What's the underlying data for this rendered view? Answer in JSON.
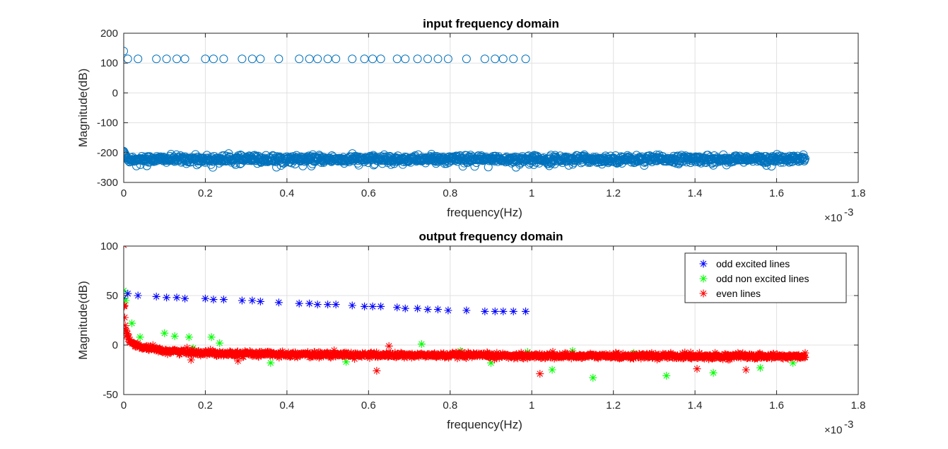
{
  "chart_data": [
    {
      "type": "scatter",
      "title": "input frequency domain",
      "xlabel": "frequency(Hz)",
      "ylabel": "Magnitude(dB)",
      "x_exponent_label": "×10",
      "x_exponent": "-3",
      "xlim": [
        0,
        1.8
      ],
      "ylim": [
        -300,
        200
      ],
      "xticks": [
        "0",
        "0.2",
        "0.4",
        "0.6",
        "0.8",
        "1",
        "1.2",
        "1.4",
        "1.6",
        "1.8"
      ],
      "yticks": [
        "200",
        "100",
        "0",
        "-100",
        "-200",
        "-300"
      ],
      "grid": true,
      "color": "#0072bd",
      "marker": "circle",
      "series": [
        {
          "points": [
            [
              0.0,
              140
            ],
            [
              0.01,
              114
            ],
            [
              0.035,
              114
            ],
            [
              0.08,
              114
            ],
            [
              0.105,
              114
            ],
            [
              0.13,
              114
            ],
            [
              0.15,
              114
            ],
            [
              0.2,
              114
            ],
            [
              0.22,
              114
            ],
            [
              0.245,
              114
            ],
            [
              0.29,
              114
            ],
            [
              0.315,
              114
            ],
            [
              0.335,
              114
            ],
            [
              0.38,
              114
            ],
            [
              0.43,
              114
            ],
            [
              0.455,
              114
            ],
            [
              0.475,
              114
            ],
            [
              0.5,
              114
            ],
            [
              0.52,
              114
            ],
            [
              0.56,
              114
            ],
            [
              0.59,
              114
            ],
            [
              0.61,
              114
            ],
            [
              0.63,
              114
            ],
            [
              0.67,
              114
            ],
            [
              0.69,
              114
            ],
            [
              0.72,
              114
            ],
            [
              0.745,
              114
            ],
            [
              0.77,
              114
            ],
            [
              0.795,
              114
            ],
            [
              0.84,
              114
            ],
            [
              0.885,
              114
            ],
            [
              0.91,
              114
            ],
            [
              0.93,
              114
            ],
            [
              0.955,
              114
            ],
            [
              0.985,
              114
            ]
          ],
          "noise_floor": {
            "x_range": [
              0.0,
              1.67
            ],
            "mean": -222,
            "spread": 14,
            "start_value": -195,
            "note": "dense band of points"
          }
        }
      ]
    },
    {
      "type": "scatter",
      "title": "output frequency domain",
      "xlabel": "frequency(Hz)",
      "ylabel": "Magnitude(dB)",
      "x_exponent_label": "×10",
      "x_exponent": "-3",
      "xlim": [
        0,
        1.8
      ],
      "ylim": [
        -50,
        100
      ],
      "xticks": [
        "0",
        "0.2",
        "0.4",
        "0.6",
        "0.8",
        "1",
        "1.2",
        "1.4",
        "1.6",
        "1.8"
      ],
      "yticks": [
        "100",
        "50",
        "0",
        "-50"
      ],
      "grid": true,
      "legend_placement": "top-right",
      "marker": "asterisk",
      "series": [
        {
          "name": "odd excited lines",
          "color": "#0000ff",
          "points": [
            [
              0.0,
              47
            ],
            [
              0.01,
              52
            ],
            [
              0.035,
              50
            ],
            [
              0.08,
              49
            ],
            [
              0.105,
              48
            ],
            [
              0.13,
              48
            ],
            [
              0.15,
              47
            ],
            [
              0.2,
              47
            ],
            [
              0.22,
              46
            ],
            [
              0.245,
              46
            ],
            [
              0.29,
              45
            ],
            [
              0.315,
              45
            ],
            [
              0.335,
              44
            ],
            [
              0.38,
              43
            ],
            [
              0.43,
              42
            ],
            [
              0.455,
              42
            ],
            [
              0.475,
              41
            ],
            [
              0.5,
              41
            ],
            [
              0.52,
              41
            ],
            [
              0.56,
              40
            ],
            [
              0.59,
              39
            ],
            [
              0.61,
              39
            ],
            [
              0.63,
              39
            ],
            [
              0.67,
              38
            ],
            [
              0.69,
              37
            ],
            [
              0.72,
              37
            ],
            [
              0.745,
              36
            ],
            [
              0.77,
              36
            ],
            [
              0.795,
              35
            ],
            [
              0.84,
              35
            ],
            [
              0.885,
              34
            ],
            [
              0.91,
              34
            ],
            [
              0.93,
              34
            ],
            [
              0.955,
              34
            ],
            [
              0.985,
              34
            ]
          ]
        },
        {
          "name": "odd non excited lines",
          "color": "#00ff00",
          "points": [
            [
              0.0,
              55
            ],
            [
              0.005,
              45
            ],
            [
              0.02,
              22
            ],
            [
              0.04,
              8
            ],
            [
              0.085,
              -5
            ],
            [
              0.1,
              12
            ],
            [
              0.125,
              9
            ],
            [
              0.16,
              8
            ],
            [
              0.17,
              -3
            ],
            [
              0.215,
              8
            ],
            [
              0.235,
              2
            ],
            [
              0.36,
              -18
            ],
            [
              0.41,
              -10
            ],
            [
              0.545,
              -17
            ],
            [
              0.73,
              1
            ],
            [
              0.825,
              -6
            ],
            [
              0.9,
              -18
            ],
            [
              0.99,
              -7
            ],
            [
              1.05,
              -25
            ],
            [
              1.1,
              -6
            ],
            [
              1.15,
              -33
            ],
            [
              1.25,
              -8
            ],
            [
              1.33,
              -31
            ],
            [
              1.445,
              -28
            ],
            [
              1.56,
              -23
            ],
            [
              1.64,
              -18
            ]
          ]
        },
        {
          "name": "even lines",
          "color": "#ff0000",
          "points": [
            [
              0.0,
              101
            ],
            [
              0.002,
              40
            ],
            [
              0.165,
              -15
            ],
            [
              0.28,
              -16
            ],
            [
              0.62,
              -26
            ],
            [
              0.65,
              -1
            ],
            [
              1.02,
              -29
            ],
            [
              1.405,
              -24
            ],
            [
              1.525,
              -25
            ],
            [
              1.67,
              -8
            ]
          ],
          "trend": {
            "x_range": [
              0.0,
              1.67
            ],
            "start_value": 40,
            "end_value": -14,
            "note": "dense band of points"
          }
        }
      ]
    }
  ]
}
